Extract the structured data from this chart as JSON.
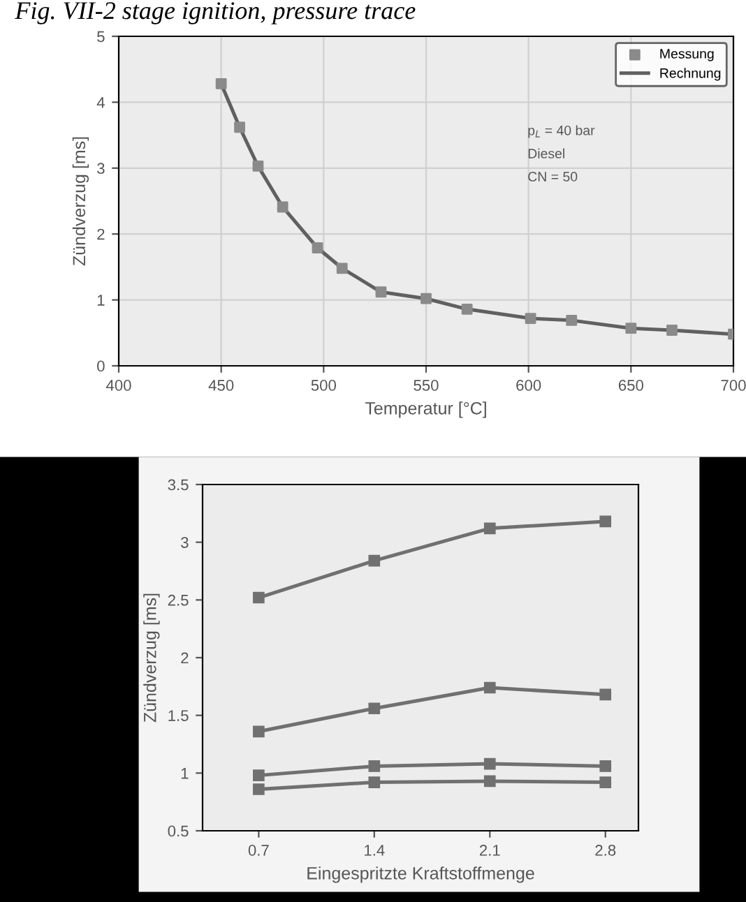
{
  "chart_data": [
    {
      "type": "line",
      "title": "Fig. VII-2 stage ignition, pressure trace",
      "xlabel": "Temperatur [°C]",
      "ylabel": "Zündverzug [ms]",
      "xlim": [
        400,
        700
      ],
      "xticks": [
        400,
        450,
        500,
        550,
        600,
        650,
        700
      ],
      "ylim": [
        0,
        5
      ],
      "yticks": [
        0,
        1,
        2,
        3,
        4,
        5
      ],
      "grid": true,
      "legend": "top right",
      "series": [
        {
          "name": "Messung",
          "type": "scatter",
          "marker": "square",
          "color": "#8a8a8a",
          "x": [
            450,
            459,
            468,
            480,
            497,
            509,
            528,
            550,
            570,
            601,
            621,
            650,
            670,
            700
          ],
          "values": [
            4.28,
            3.62,
            3.03,
            2.41,
            1.79,
            1.48,
            1.12,
            1.02,
            0.86,
            0.72,
            0.69,
            0.57,
            0.54,
            0.48
          ]
        },
        {
          "name": "Rechnung",
          "type": "line",
          "marker": "none",
          "color": "#606060",
          "x": [
            450,
            459,
            468,
            480,
            497,
            509,
            528,
            550,
            570,
            601,
            621,
            650,
            670,
            700
          ],
          "values": [
            4.28,
            3.62,
            3.03,
            2.41,
            1.79,
            1.48,
            1.12,
            1.02,
            0.86,
            0.72,
            0.69,
            0.57,
            0.54,
            0.48
          ]
        }
      ],
      "annotations": [
        "p$_{L}$ = 40 bar",
        "Diesel",
        "CN = 50"
      ]
    },
    {
      "type": "line",
      "xlabel": "Eingespritzte Kraftstoffmenge",
      "ylabel": "Zündverzug [ms]",
      "x": [
        0.7,
        1.4,
        2.1,
        2.8
      ],
      "xlim": [
        0.36,
        3.0
      ],
      "xticks": [
        0.7,
        1.4,
        2.1,
        2.8
      ],
      "ylim": [
        0.5,
        3.5
      ],
      "yticks": [
        0.5,
        1,
        1.5,
        2,
        2.5,
        3,
        3.5
      ],
      "grid": false,
      "marker": "square",
      "series": [
        {
          "color": "#707070",
          "values": [
            2.52,
            2.84,
            3.12,
            3.18
          ]
        },
        {
          "color": "#707070",
          "values": [
            1.36,
            1.56,
            1.74,
            1.68
          ]
        },
        {
          "color": "#707070",
          "values": [
            0.98,
            1.06,
            1.08,
            1.06
          ]
        },
        {
          "color": "#707070",
          "values": [
            0.86,
            0.92,
            0.93,
            0.92
          ]
        }
      ]
    }
  ]
}
